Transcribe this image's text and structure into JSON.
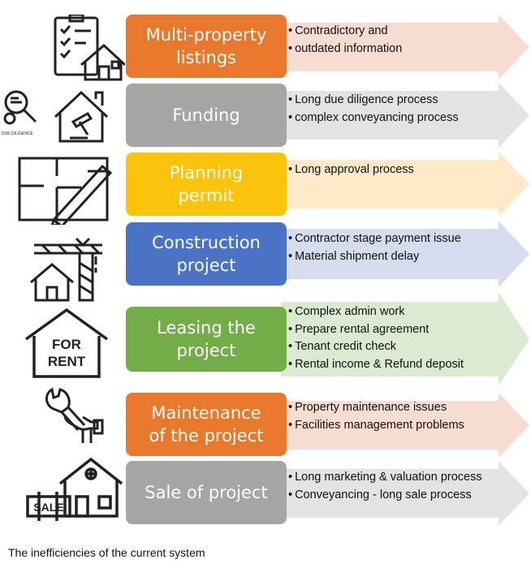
{
  "caption": "The inefficiencies of the current system",
  "stages": [
    {
      "title": "Multi-property\nlistings",
      "color": "#e8782c",
      "arrow_color": "#f6dcd1",
      "bullets": [
        "Contradictory and",
        "outdated information"
      ],
      "icon": "checklist-house-icon"
    },
    {
      "title": "Funding",
      "color": "#a5a5a5",
      "arrow_color": "#e3e3e3",
      "bullets": [
        "Long due diligence process",
        "complex conveyancing process"
      ],
      "icon": "due-diligence-house-gavel-icon",
      "icon_label": "DUE DILIGENCE"
    },
    {
      "title": "Planning\npermit",
      "color": "#fbc30b",
      "arrow_color": "#fde9c8",
      "bullets": [
        "Long approval process"
      ],
      "icon": "floor-plan-pencil-icon"
    },
    {
      "title": "Construction\nproject",
      "color": "#4a72c5",
      "arrow_color": "#d6dcee",
      "bullets": [
        "Contractor stage payment issue",
        "Material shipment delay"
      ],
      "icon": "crane-house-icon"
    },
    {
      "title": "Leasing the\nproject",
      "color": "#73ad47",
      "arrow_color": "#daebd1",
      "bullets": [
        "Complex admin work",
        "Prepare rental agreement",
        "Tenant credit check",
        "Rental income & Refund deposit"
      ],
      "icon": "for-rent-house-icon",
      "icon_label": "FOR\nRENT"
    },
    {
      "title": "Maintenance\nof the project",
      "color": "#e8782c",
      "arrow_color": "#f6dcd1",
      "bullets": [
        "Property maintenance issues",
        "Facilities management problems"
      ],
      "icon": "wrench-hand-icon"
    },
    {
      "title": "Sale of project",
      "color": "#a5a5a5",
      "arrow_color": "#e3e3e3",
      "bullets": [
        "Long marketing  & valuation process",
        "Conveyancing - long sale process"
      ],
      "icon": "sale-sign-house-icon",
      "icon_label": "SALE"
    }
  ]
}
